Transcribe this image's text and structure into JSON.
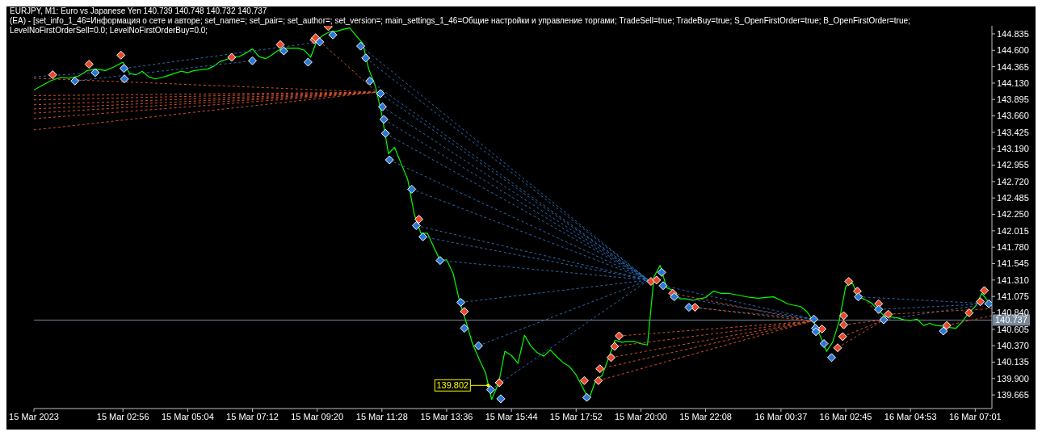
{
  "chart_data": {
    "type": "line",
    "title": "EURJPY, M1:  Euro vs Japanese Yen  140.739 140.748 140.732 140.737",
    "subtitle": "(EA) - [set_info_1_46=Информация о сете и авторе; set_name=; set_pair=; set_author=; set_version=; main_settings_1_46=Общие настройки и управление торгами; TradeSell=true; TradeBuy=true; S_OpenFirstOrder=true; B_OpenFirstOrder=true; LevelNoFirstOrderSell=0.0; LevelNoFirstOrderBuy=0.0;",
    "xlim": [
      "2023-03-15T00:00",
      "2023-03-16T07:34"
    ],
    "xticks": [
      {
        "value": "2023-03-15T00:00",
        "label": "15 Mar 2023"
      },
      {
        "value": "2023-03-15T02:56",
        "label": "15 Mar 02:56"
      },
      {
        "value": "2023-03-15T05:04",
        "label": "15 Mar 05:04"
      },
      {
        "value": "2023-03-15T07:12",
        "label": "15 Mar 07:12"
      },
      {
        "value": "2023-03-15T09:20",
        "label": "15 Mar 09:20"
      },
      {
        "value": "2023-03-15T11:28",
        "label": "15 Mar 11:28"
      },
      {
        "value": "2023-03-15T13:36",
        "label": "15 Mar 13:36"
      },
      {
        "value": "2023-03-15T15:44",
        "label": "15 Mar 15:44"
      },
      {
        "value": "2023-03-15T17:52",
        "label": "15 Mar 17:52"
      },
      {
        "value": "2023-03-15T20:00",
        "label": "15 Mar 20:00"
      },
      {
        "value": "2023-03-15T22:08",
        "label": "15 Mar 22:08"
      },
      {
        "value": "2023-03-16T00:37",
        "label": "16 Mar 00:37"
      },
      {
        "value": "2023-03-16T02:45",
        "label": "16 Mar 02:45"
      },
      {
        "value": "2023-03-16T04:53",
        "label": "16 Mar 04:53"
      },
      {
        "value": "2023-03-16T07:01",
        "label": "16 Mar 07:01"
      }
    ],
    "ylim": [
      139.47,
      144.95
    ],
    "yticks": [
      139.665,
      {
        "value": 139.9,
        "label": "139.900"
      },
      140.135,
      {
        "value": 140.37,
        "label": "140.370"
      },
      140.605,
      {
        "value": 140.84,
        "label": "140.840"
      },
      141.075,
      {
        "value": 141.31,
        "label": "141.310"
      },
      141.545,
      {
        "value": 141.78,
        "label": "141.780"
      },
      142.015,
      {
        "value": 142.25,
        "label": "142.250"
      },
      142.485,
      {
        "value": 142.72,
        "label": "142.720"
      },
      142.955,
      {
        "value": 143.19,
        "label": "143.190"
      },
      143.425,
      {
        "value": 143.66,
        "label": "143.660"
      },
      143.895,
      {
        "value": 144.13,
        "label": "144.130"
      },
      144.365,
      {
        "value": 144.6,
        "label": "144.600"
      },
      144.835
    ],
    "ref_lines": [
      {
        "axis": "y",
        "value": 140.737,
        "label": "140.737",
        "color": "#778899"
      }
    ],
    "annotations": [
      {
        "text": "139.802",
        "x": "2023-03-15T14:58",
        "y": 139.802
      }
    ],
    "series": [
      {
        "color": "#00ff00",
        "x": [
          "2023-03-15T00:00",
          "2023-03-15T00:17",
          "2023-03-15T00:35",
          "2023-03-15T00:53",
          "2023-03-15T01:10",
          "2023-03-15T01:28",
          "2023-03-15T01:46",
          "2023-03-15T02:03",
          "2023-03-15T02:21",
          "2023-03-15T02:38",
          "2023-03-15T02:56",
          "2023-03-15T03:09",
          "2023-03-15T03:22",
          "2023-03-15T03:34",
          "2023-03-15T03:47",
          "2023-03-15T04:00",
          "2023-03-15T04:13",
          "2023-03-15T04:26",
          "2023-03-15T04:38",
          "2023-03-15T04:51",
          "2023-03-15T05:04",
          "2023-03-15T05:17",
          "2023-03-15T05:29",
          "2023-03-15T05:43",
          "2023-03-15T05:55",
          "2023-03-15T06:08",
          "2023-03-15T06:21",
          "2023-03-15T06:34",
          "2023-03-15T06:46",
          "2023-03-15T06:59",
          "2023-03-15T07:12",
          "2023-03-15T07:25",
          "2023-03-15T07:38",
          "2023-03-15T07:50",
          "2023-03-15T08:03",
          "2023-03-15T08:16",
          "2023-03-15T08:29",
          "2023-03-15T08:41",
          "2023-03-15T08:55",
          "2023-03-15T09:07",
          "2023-03-15T09:20",
          "2023-03-15T09:33",
          "2023-03-15T09:46",
          "2023-03-15T09:58",
          "2023-03-15T10:11",
          "2023-03-15T10:24",
          "2023-03-15T10:37",
          "2023-03-15T10:50",
          "2023-03-15T11:02",
          "2023-03-15T11:15",
          "2023-03-15T11:28",
          "2023-03-15T11:41",
          "2023-03-15T11:53",
          "2023-03-15T12:07",
          "2023-03-15T12:19",
          "2023-03-15T12:32",
          "2023-03-15T12:45",
          "2023-03-15T12:58",
          "2023-03-15T13:10",
          "2023-03-15T13:23",
          "2023-03-15T13:36",
          "2023-03-15T13:49",
          "2023-03-15T14:02",
          "2023-03-15T14:14",
          "2023-03-15T14:27",
          "2023-03-15T14:40",
          "2023-03-15T14:53",
          "2023-03-15T15:05",
          "2023-03-15T15:19",
          "2023-03-15T15:31",
          "2023-03-15T15:44",
          "2023-03-15T15:57",
          "2023-03-15T16:10",
          "2023-03-15T16:22",
          "2023-03-15T16:35",
          "2023-03-15T16:48",
          "2023-03-15T17:01",
          "2023-03-15T17:14",
          "2023-03-15T17:26",
          "2023-03-15T17:39",
          "2023-03-15T17:52",
          "2023-03-15T18:05",
          "2023-03-15T18:17",
          "2023-03-15T18:31",
          "2023-03-15T18:43",
          "2023-03-15T18:56",
          "2023-03-15T19:09",
          "2023-03-15T19:22",
          "2023-03-15T19:34",
          "2023-03-15T19:47",
          "2023-03-15T20:00",
          "2023-03-15T20:13",
          "2023-03-15T20:26",
          "2023-03-15T20:38",
          "2023-03-15T20:51",
          "2023-03-15T21:04",
          "2023-03-15T21:17",
          "2023-03-15T21:29",
          "2023-03-15T21:43",
          "2023-03-15T21:55",
          "2023-03-15T22:08",
          "2023-03-15T22:23",
          "2023-03-15T22:38",
          "2023-03-15T22:53",
          "2023-03-15T23:08",
          "2023-03-15T23:22",
          "2023-03-15T23:37",
          "2023-03-15T23:52",
          "2023-03-16T00:07",
          "2023-03-16T00:22",
          "2023-03-16T00:37",
          "2023-03-16T00:50",
          "2023-03-16T01:02",
          "2023-03-16T01:16",
          "2023-03-16T01:28",
          "2023-03-16T01:41",
          "2023-03-16T01:54",
          "2023-03-16T02:07",
          "2023-03-16T02:19",
          "2023-03-16T02:32",
          "2023-03-16T02:45",
          "2023-03-16T02:58",
          "2023-03-16T03:10",
          "2023-03-16T03:23",
          "2023-03-16T03:36",
          "2023-03-16T03:49",
          "2023-03-16T04:02",
          "2023-03-16T04:14",
          "2023-03-16T04:27",
          "2023-03-16T04:40",
          "2023-03-16T04:53",
          "2023-03-16T05:06",
          "2023-03-16T05:19",
          "2023-03-16T05:31",
          "2023-03-16T05:44",
          "2023-03-16T05:57",
          "2023-03-16T06:10",
          "2023-03-16T06:23",
          "2023-03-16T06:35",
          "2023-03-16T06:48",
          "2023-03-16T07:01",
          "2023-03-16T07:14",
          "2023-03-16T07:26"
        ],
        "values": [
          144.03,
          144.1,
          144.17,
          144.21,
          144.2,
          144.23,
          144.31,
          144.33,
          144.31,
          144.36,
          144.43,
          144.27,
          144.25,
          144.3,
          144.22,
          144.19,
          144.21,
          144.24,
          144.27,
          144.3,
          144.28,
          144.31,
          144.32,
          144.33,
          144.37,
          144.44,
          144.47,
          144.5,
          144.51,
          144.56,
          144.62,
          144.51,
          144.48,
          144.53,
          144.6,
          144.63,
          144.63,
          144.63,
          144.6,
          144.5,
          144.75,
          144.82,
          144.87,
          144.87,
          144.9,
          144.92,
          144.81,
          144.7,
          144.33,
          144.09,
          143.67,
          143.12,
          143.21,
          142.96,
          142.75,
          142.25,
          141.98,
          141.98,
          141.79,
          141.59,
          141.6,
          141.4,
          140.99,
          140.72,
          140.4,
          140.18,
          139.98,
          139.6,
          139.84,
          140.29,
          140.23,
          140.12,
          140.52,
          140.37,
          140.27,
          140.22,
          140.31,
          140.21,
          140.13,
          140.07,
          139.95,
          139.77,
          139.6,
          139.88,
          139.94,
          140.19,
          140.45,
          140.42,
          140.43,
          140.43,
          140.4,
          140.38,
          141.36,
          141.52,
          141.2,
          141.16,
          141.04,
          141.04,
          141.02,
          141.04,
          141.06,
          141.15,
          141.12,
          141.12,
          141.1,
          141.08,
          141.06,
          141.05,
          141.06,
          141.07,
          141.02,
          140.97,
          140.95,
          140.93,
          140.86,
          140.72,
          140.52,
          140.29,
          140.42,
          140.72,
          141.22,
          141.27,
          141.07,
          141.03,
          140.98,
          140.88,
          140.79,
          140.78,
          140.77,
          140.74,
          140.73,
          140.75,
          140.66,
          140.69,
          140.66,
          140.65,
          140.63,
          140.62,
          140.71,
          140.84,
          140.93,
          141.12,
          141.01
        ]
      },
      {
        "type": "line",
        "line_style": "dashed",
        "color": "#2a6db5",
        "x": [
          "2023-03-15T10:46",
          "2023-03-15T20:15"
        ],
        "values": [
          144.66,
          141.31
        ]
      },
      {
        "type": "line",
        "line_style": "dashed",
        "color": "#2a6db5",
        "x": [
          "2023-03-15T10:56",
          "2023-03-15T20:15"
        ],
        "values": [
          144.49,
          141.31
        ]
      },
      {
        "type": "line",
        "line_style": "dashed",
        "color": "#2a6db5",
        "x": [
          "2023-03-15T11:04",
          "2023-03-15T20:15"
        ],
        "values": [
          144.16,
          141.31
        ]
      },
      {
        "type": "line",
        "line_style": "dashed",
        "color": "#2a6db5",
        "x": [
          "2023-03-15T11:25",
          "2023-03-15T20:15"
        ],
        "values": [
          143.98,
          141.31
        ]
      },
      {
        "type": "line",
        "line_style": "dashed",
        "color": "#2a6db5",
        "x": [
          "2023-03-15T11:29",
          "2023-03-15T20:15"
        ],
        "values": [
          143.79,
          141.31
        ]
      },
      {
        "type": "line",
        "line_style": "dashed",
        "color": "#2a6db5",
        "x": [
          "2023-03-15T11:32",
          "2023-03-15T20:15"
        ],
        "values": [
          143.61,
          141.31
        ]
      },
      {
        "type": "line",
        "line_style": "dashed",
        "color": "#2a6db5",
        "x": [
          "2023-03-15T11:35",
          "2023-03-15T20:15"
        ],
        "values": [
          143.41,
          141.31
        ]
      },
      {
        "type": "line",
        "line_style": "dashed",
        "color": "#2a6db5",
        "x": [
          "2023-03-15T11:43",
          "2023-03-15T20:15"
        ],
        "values": [
          143.03,
          141.31
        ]
      },
      {
        "type": "line",
        "line_style": "dashed",
        "color": "#2a6db5",
        "x": [
          "2023-03-15T12:27",
          "2023-03-15T20:15"
        ],
        "values": [
          142.61,
          141.31
        ]
      },
      {
        "type": "line",
        "line_style": "dashed",
        "color": "#2a6db5",
        "x": [
          "2023-03-15T12:36",
          "2023-03-15T20:15"
        ],
        "values": [
          142.09,
          141.31
        ]
      },
      {
        "type": "line",
        "line_style": "dashed",
        "color": "#2a6db5",
        "x": [
          "2023-03-15T12:49",
          "2023-03-15T20:15"
        ],
        "values": [
          141.93,
          141.31
        ]
      },
      {
        "type": "line",
        "line_style": "dashed",
        "color": "#2a6db5",
        "x": [
          "2023-03-15T13:23",
          "2023-03-15T20:15"
        ],
        "values": [
          141.59,
          141.31
        ]
      },
      {
        "type": "line",
        "line_style": "dashed",
        "color": "#2a6db5",
        "x": [
          "2023-03-15T14:04",
          "2023-03-15T20:15"
        ],
        "values": [
          140.99,
          141.31
        ]
      },
      {
        "type": "line",
        "line_style": "dashed",
        "color": "#2a6db5",
        "x": [
          "2023-03-15T14:39",
          "2023-03-15T20:15"
        ],
        "values": [
          140.37,
          141.31
        ]
      },
      {
        "type": "line",
        "line_style": "dashed",
        "color": "#2a6db5",
        "x": [
          "2023-03-15T15:03",
          "2023-03-15T20:15"
        ],
        "values": [
          139.74,
          141.31
        ]
      },
      {
        "type": "line",
        "line_style": "dashed",
        "color": "#2a6db5",
        "x": [
          "2023-03-15T00:00",
          "2023-03-15T02:01"
        ],
        "values": [
          144.22,
          144.28
        ]
      },
      {
        "type": "line",
        "line_style": "dashed",
        "color": "#2a6db5",
        "x": [
          "2023-03-15T02:58",
          "2023-03-15T09:25"
        ],
        "values": [
          144.34,
          144.72
        ]
      },
      {
        "type": "line",
        "line_style": "dashed",
        "color": "#2a6db5",
        "x": [
          "2023-03-15T01:21",
          "2023-03-15T07:12"
        ],
        "values": [
          144.16,
          144.45
        ]
      },
      {
        "type": "line",
        "line_style": "dashed",
        "color": "#2a6db5",
        "x": [
          "2023-03-15T20:44",
          "2023-03-16T01:42"
        ],
        "values": [
          141.23,
          140.75
        ]
      },
      {
        "type": "line",
        "line_style": "dashed",
        "color": "#2a6db5",
        "x": [
          "2023-03-15T21:06",
          "2023-03-16T01:42"
        ],
        "values": [
          141.07,
          140.75
        ]
      },
      {
        "type": "line",
        "line_style": "dashed",
        "color": "#2a6db5",
        "x": [
          "2023-03-15T21:35",
          "2023-03-16T01:42"
        ],
        "values": [
          140.92,
          140.75
        ]
      },
      {
        "type": "line",
        "line_style": "dashed",
        "color": "#2a6db5",
        "x": [
          "2023-03-16T03:10",
          "2023-03-16T07:28"
        ],
        "values": [
          141.07,
          140.97
        ]
      },
      {
        "type": "line",
        "line_style": "dashed",
        "color": "#2a6db5",
        "x": [
          "2023-03-16T03:50",
          "2023-03-16T07:28"
        ],
        "values": [
          140.89,
          140.97
        ]
      },
      {
        "type": "line",
        "line_style": "dashed",
        "color": "#2a6db5",
        "x": [
          "2023-03-16T04:00",
          "2023-03-16T07:28"
        ],
        "values": [
          140.74,
          140.97
        ]
      },
      {
        "type": "line",
        "line_style": "dashed",
        "color": "#d4522a",
        "x": [
          "2023-03-15T00:00",
          "2023-03-15T11:18"
        ],
        "values": [
          144.2,
          144.0
        ]
      },
      {
        "type": "line",
        "line_style": "dashed",
        "color": "#d4522a",
        "x": [
          "2023-03-15T00:00",
          "2023-03-15T11:18"
        ],
        "values": [
          143.95,
          144.0
        ]
      },
      {
        "type": "line",
        "line_style": "dashed",
        "color": "#d4522a",
        "x": [
          "2023-03-15T00:00",
          "2023-03-15T11:18"
        ],
        "values": [
          143.89,
          144.0
        ]
      },
      {
        "type": "line",
        "line_style": "dashed",
        "color": "#d4522a",
        "x": [
          "2023-03-15T00:00",
          "2023-03-15T11:18"
        ],
        "values": [
          143.82,
          144.0
        ]
      },
      {
        "type": "line",
        "line_style": "dashed",
        "color": "#d4522a",
        "x": [
          "2023-03-15T00:00",
          "2023-03-15T11:18"
        ],
        "values": [
          143.76,
          144.0
        ]
      },
      {
        "type": "line",
        "line_style": "dashed",
        "color": "#d4522a",
        "x": [
          "2023-03-15T00:00",
          "2023-03-15T11:18"
        ],
        "values": [
          143.7,
          144.0
        ]
      },
      {
        "type": "line",
        "line_style": "dashed",
        "color": "#d4522a",
        "x": [
          "2023-03-15T00:00",
          "2023-03-15T11:18"
        ],
        "values": [
          143.62,
          144.0
        ]
      },
      {
        "type": "line",
        "line_style": "dashed",
        "color": "#d4522a",
        "x": [
          "2023-03-15T00:00",
          "2023-03-15T11:18"
        ],
        "values": [
          143.46,
          144.0
        ]
      },
      {
        "type": "line",
        "line_style": "dashed",
        "color": "#d4522a",
        "x": [
          "2023-03-15T09:17",
          "2023-03-15T11:18"
        ],
        "values": [
          144.78,
          144.0
        ]
      },
      {
        "type": "line",
        "line_style": "dashed",
        "color": "#d4522a",
        "x": [
          "2023-03-15T18:36",
          "2023-03-16T01:37"
        ],
        "values": [
          139.87,
          140.72
        ]
      },
      {
        "type": "line",
        "line_style": "dashed",
        "color": "#d4522a",
        "x": [
          "2023-03-15T18:39",
          "2023-03-16T01:37"
        ],
        "values": [
          140.04,
          140.72
        ]
      },
      {
        "type": "line",
        "line_style": "dashed",
        "color": "#d4522a",
        "x": [
          "2023-03-15T19:01",
          "2023-03-16T01:37"
        ],
        "values": [
          140.2,
          140.72
        ]
      },
      {
        "type": "line",
        "line_style": "dashed",
        "color": "#d4522a",
        "x": [
          "2023-03-15T19:08",
          "2023-03-16T01:37"
        ],
        "values": [
          140.36,
          140.72
        ]
      },
      {
        "type": "line",
        "line_style": "dashed",
        "color": "#d4522a",
        "x": [
          "2023-03-15T19:17",
          "2023-03-16T01:37"
        ],
        "values": [
          140.51,
          140.72
        ]
      },
      {
        "type": "line",
        "line_style": "dashed",
        "color": "#d4522a",
        "x": [
          "2023-03-15T21:03",
          "2023-03-16T01:37"
        ],
        "values": [
          141.12,
          140.72
        ]
      },
      {
        "type": "line",
        "line_style": "dashed",
        "color": "#d4522a",
        "x": [
          "2023-03-15T21:47",
          "2023-03-16T01:37"
        ],
        "values": [
          140.92,
          140.72
        ]
      },
      {
        "type": "line",
        "line_style": "dashed",
        "color": "#d4522a",
        "x": [
          "2023-03-16T02:29",
          "2023-03-16T04:00"
        ],
        "values": [
          140.34,
          140.74
        ]
      },
      {
        "type": "line",
        "line_style": "dashed",
        "color": "#d4522a",
        "x": [
          "2023-03-16T02:39",
          "2023-03-16T04:00"
        ],
        "values": [
          140.5,
          140.74
        ]
      },
      {
        "type": "line",
        "line_style": "dashed",
        "color": "#d4522a",
        "x": [
          "2023-03-16T02:41",
          "2023-03-16T04:00"
        ],
        "values": [
          140.67,
          140.74
        ]
      },
      {
        "type": "line",
        "line_style": "dashed",
        "color": "#d4522a",
        "x": [
          "2023-03-16T03:08",
          "2023-03-16T04:00"
        ],
        "values": [
          141.15,
          140.74
        ]
      },
      {
        "type": "line",
        "line_style": "dashed",
        "color": "#d4522a",
        "x": [
          "2023-03-16T04:09",
          "2023-03-16T07:34"
        ],
        "values": [
          140.82,
          140.9
        ]
      },
      {
        "type": "line",
        "line_style": "dashed",
        "color": "#d4522a",
        "x": [
          "2023-03-16T06:05",
          "2023-03-16T07:34"
        ],
        "values": [
          140.66,
          140.8
        ]
      },
      {
        "type": "scatter",
        "marker": "diamond",
        "color": "#e8482a",
        "x": [
          "2023-03-15T00:37",
          "2023-03-15T01:49",
          "2023-03-15T02:52",
          "2023-03-15T06:31",
          "2023-03-15T08:07",
          "2023-03-15T09:14",
          "2023-03-15T09:17",
          "2023-03-15T09:42",
          "2023-03-15T12:41",
          "2023-03-15T14:11",
          "2023-03-15T15:20",
          "2023-03-15T18:08",
          "2023-03-15T18:36",
          "2023-03-15T18:39",
          "2023-03-15T19:01",
          "2023-03-15T19:08",
          "2023-03-15T19:17",
          "2023-03-15T20:20",
          "2023-03-15T20:31",
          "2023-03-15T21:03",
          "2023-03-15T21:47",
          "2023-03-16T01:58",
          "2023-03-16T02:29",
          "2023-03-16T02:39",
          "2023-03-16T02:41",
          "2023-03-16T02:41",
          "2023-03-16T02:51",
          "2023-03-16T03:08",
          "2023-03-16T03:50",
          "2023-03-16T04:09",
          "2023-03-16T06:05",
          "2023-03-16T06:49",
          "2023-03-16T07:11",
          "2023-03-16T07:19"
        ],
        "values": [
          144.25,
          144.4,
          144.53,
          144.5,
          144.68,
          144.75,
          144.78,
          144.94,
          142.18,
          140.86,
          139.84,
          139.87,
          139.87,
          140.04,
          140.2,
          140.36,
          140.51,
          141.29,
          141.31,
          141.12,
          140.92,
          140.61,
          140.34,
          140.5,
          140.67,
          140.8,
          141.29,
          141.15,
          140.97,
          140.82,
          140.66,
          140.84,
          141.0,
          141.16
        ]
      },
      {
        "type": "scatter",
        "marker": "diamond",
        "color": "#2a78d6",
        "x": [
          "2023-03-15T01:21",
          "2023-03-15T02:01",
          "2023-03-15T02:58",
          "2023-03-15T02:59",
          "2023-03-15T07:12",
          "2023-03-15T08:14",
          "2023-03-15T09:02",
          "2023-03-15T09:25",
          "2023-03-15T09:51",
          "2023-03-15T10:46",
          "2023-03-15T10:56",
          "2023-03-15T11:04",
          "2023-03-15T11:25",
          "2023-03-15T11:29",
          "2023-03-15T11:32",
          "2023-03-15T11:35",
          "2023-03-15T11:43",
          "2023-03-15T12:27",
          "2023-03-15T12:36",
          "2023-03-15T12:49",
          "2023-03-15T13:23",
          "2023-03-15T14:04",
          "2023-03-15T14:11",
          "2023-03-15T14:39",
          "2023-03-15T15:03",
          "2023-03-15T15:23",
          "2023-03-15T18:13",
          "2023-03-15T20:41",
          "2023-03-15T20:44",
          "2023-03-15T21:06",
          "2023-03-15T21:35",
          "2023-03-16T01:42",
          "2023-03-16T01:45",
          "2023-03-16T01:46",
          "2023-03-16T02:02",
          "2023-03-16T02:17",
          "2023-03-16T03:10",
          "2023-03-16T03:50",
          "2023-03-16T04:00",
          "2023-03-16T05:58",
          "2023-03-16T07:28"
        ],
        "values": [
          144.16,
          144.28,
          144.34,
          144.19,
          144.45,
          144.59,
          144.43,
          144.72,
          144.82,
          144.66,
          144.49,
          144.16,
          143.98,
          143.79,
          143.61,
          143.41,
          143.03,
          142.61,
          142.09,
          141.93,
          141.59,
          140.99,
          140.62,
          140.37,
          139.74,
          139.61,
          139.63,
          141.42,
          141.23,
          141.07,
          140.92,
          140.75,
          140.62,
          140.57,
          140.4,
          140.2,
          141.07,
          140.89,
          140.74,
          140.58,
          140.97
        ]
      }
    ]
  }
}
